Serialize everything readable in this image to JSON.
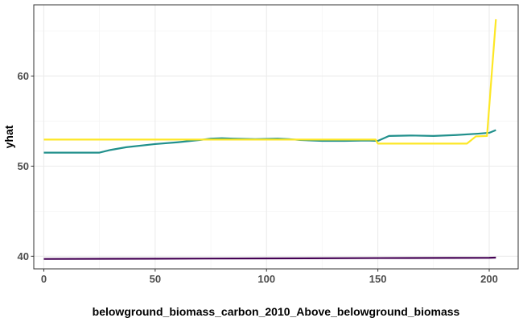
{
  "chart_data": {
    "type": "line",
    "title": "",
    "xlabel": "belowground_biomass_carbon_2010_Above_belowground_biomass",
    "ylabel": "yhat",
    "xlim": [
      -4.5,
      213
    ],
    "ylim": [
      38.6,
      67.9
    ],
    "xticks": [
      0,
      50,
      100,
      150,
      200
    ],
    "yticks": [
      40,
      50,
      60
    ],
    "grid": true,
    "legend": "none",
    "series": [
      {
        "color": "#440154",
        "points": [
          [
            0,
            39.7
          ],
          [
            50,
            39.73
          ],
          [
            100,
            39.76
          ],
          [
            150,
            39.8
          ],
          [
            200,
            39.83
          ],
          [
            203,
            39.85
          ]
        ]
      },
      {
        "color": "#21908C",
        "points": [
          [
            0,
            51.5
          ],
          [
            10,
            51.5
          ],
          [
            20,
            51.5
          ],
          [
            25,
            51.5
          ],
          [
            30,
            51.8
          ],
          [
            37,
            52.1
          ],
          [
            50,
            52.45
          ],
          [
            60,
            52.65
          ],
          [
            70,
            52.9
          ],
          [
            75,
            53.05
          ],
          [
            80,
            53.1
          ],
          [
            85,
            53.05
          ],
          [
            95,
            53.0
          ],
          [
            105,
            53.05
          ],
          [
            110,
            53.0
          ],
          [
            115,
            52.9
          ],
          [
            125,
            52.8
          ],
          [
            135,
            52.8
          ],
          [
            145,
            52.85
          ],
          [
            150,
            52.8
          ],
          [
            155,
            53.35
          ],
          [
            165,
            53.4
          ],
          [
            175,
            53.35
          ],
          [
            185,
            53.45
          ],
          [
            195,
            53.6
          ],
          [
            200,
            53.7
          ],
          [
            203,
            54.0
          ]
        ]
      },
      {
        "color": "#FDE725",
        "points": [
          [
            0,
            52.95
          ],
          [
            70,
            52.95
          ],
          [
            75,
            52.95
          ],
          [
            100,
            52.95
          ],
          [
            149,
            52.95
          ],
          [
            150,
            52.5
          ],
          [
            190,
            52.5
          ],
          [
            194,
            53.3
          ],
          [
            199,
            53.35
          ],
          [
            203,
            66.3
          ]
        ]
      }
    ]
  }
}
